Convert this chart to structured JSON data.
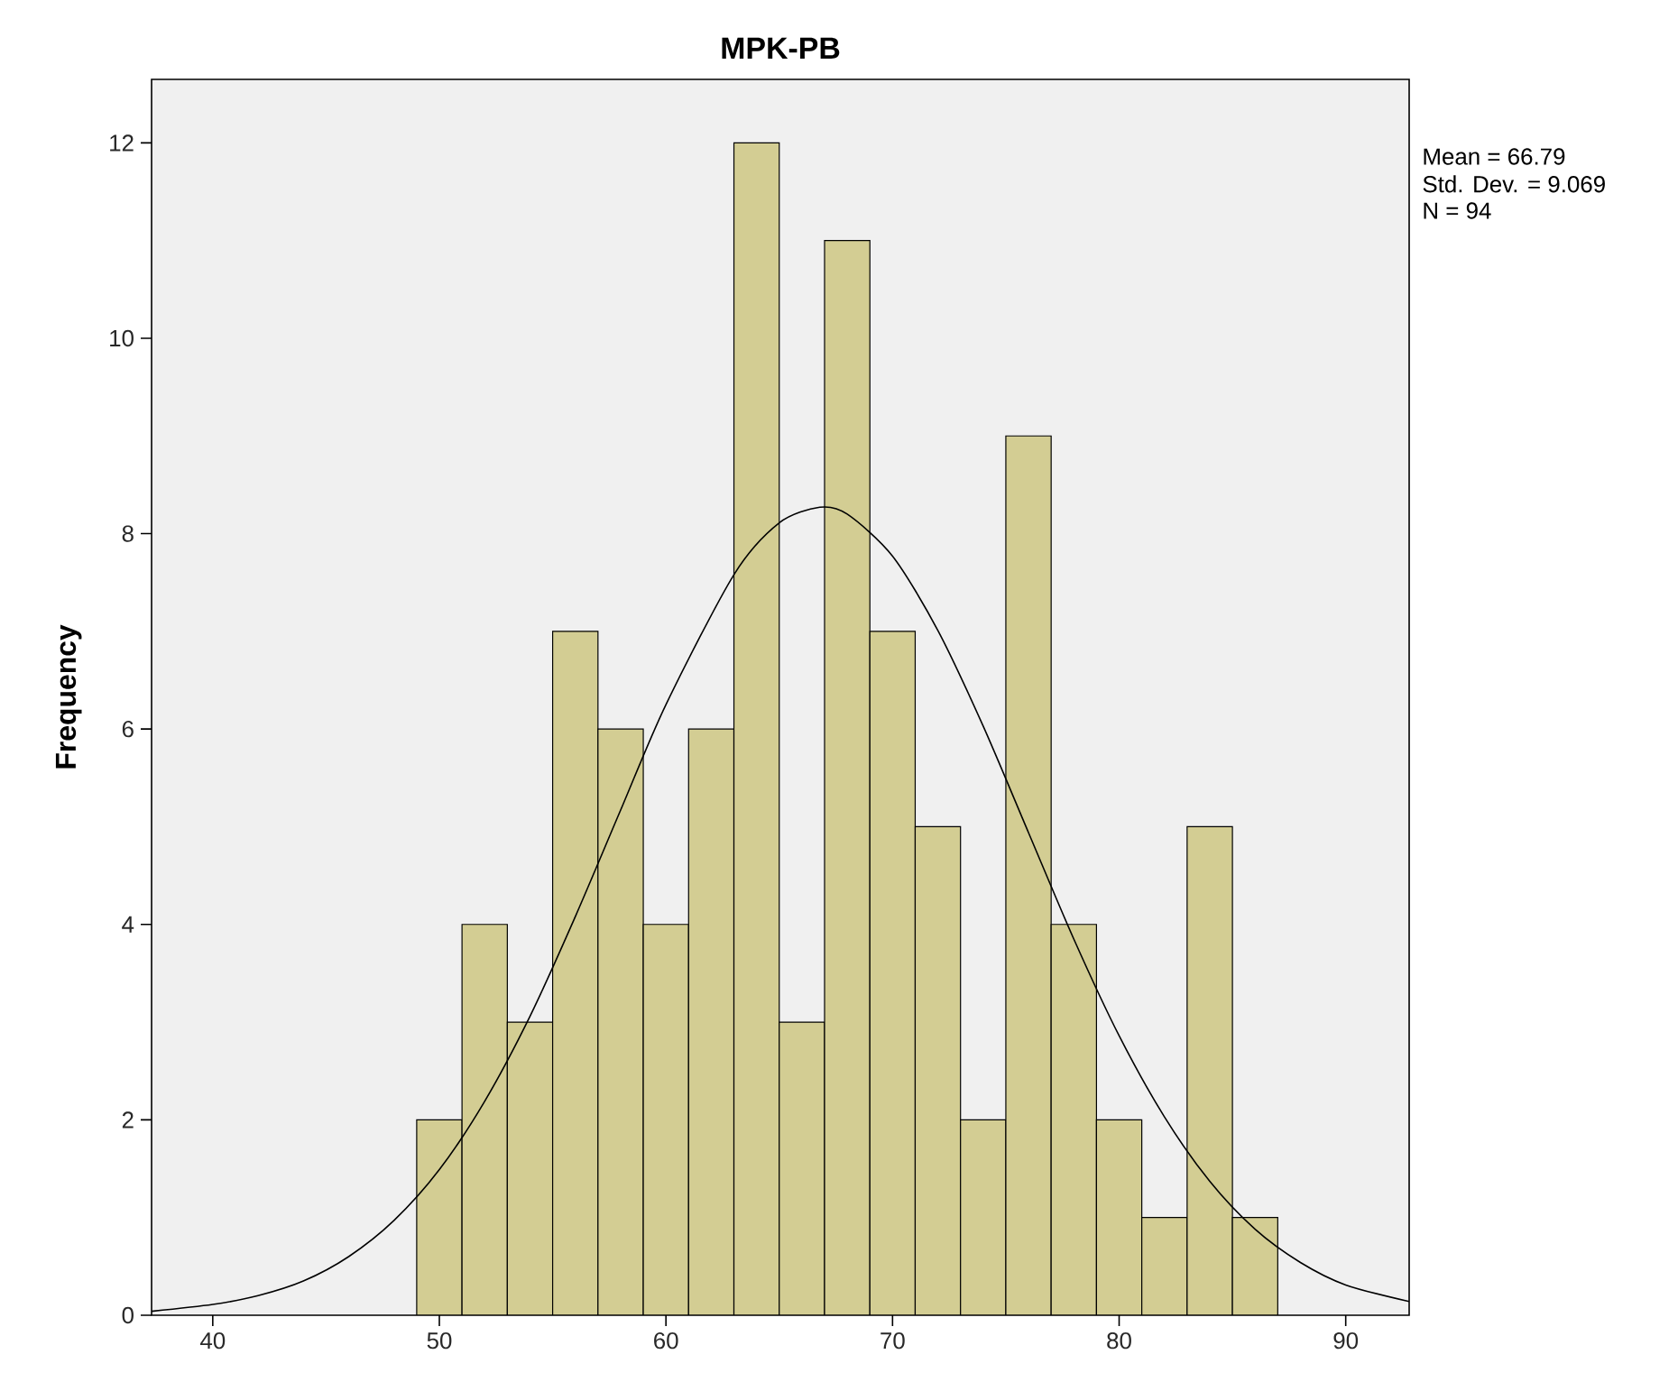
{
  "chart_data": {
    "type": "histogram",
    "title": "MPK-PB",
    "ylabel": "Frequency",
    "bins": [
      49,
      51,
      53,
      55,
      57,
      59,
      61,
      63,
      65,
      67,
      69,
      71,
      73,
      75,
      77,
      79,
      81,
      83,
      85,
      87
    ],
    "values": [
      2,
      4,
      3,
      7,
      6,
      4,
      6,
      12,
      3,
      11,
      7,
      5,
      2,
      9,
      4,
      2,
      1,
      5,
      1
    ],
    "color": "#d3cd93",
    "series": [
      {
        "type": "line",
        "color": "#000000",
        "x": [
          37.3,
          40,
          42,
          44,
          46,
          48,
          50,
          52,
          54,
          56,
          58,
          60,
          63,
          65,
          66.79,
          68,
          70,
          72,
          74,
          76,
          78,
          80,
          82,
          84,
          86,
          88,
          90,
          92.8
        ],
        "values": [
          0.04,
          0.11,
          0.2,
          0.35,
          0.6,
          0.97,
          1.49,
          2.19,
          3.06,
          4.08,
          5.17,
          6.25,
          7.58,
          8.11,
          8.27,
          8.2,
          7.77,
          7.01,
          6.03,
          4.94,
          3.85,
          2.86,
          2.03,
          1.37,
          0.88,
          0.54,
          0.31,
          0.14
        ]
      }
    ],
    "xlim": [
      37.3,
      92.8
    ],
    "ylim": [
      0,
      12.65
    ],
    "xticks": [
      40,
      50,
      60,
      70,
      80,
      90
    ],
    "yticks": [
      0,
      2,
      4,
      6,
      8,
      10,
      12
    ],
    "grid": false,
    "annotations": [
      "Mean = 66.79",
      "Std. Dev. = 9.069",
      "N = 94"
    ]
  }
}
